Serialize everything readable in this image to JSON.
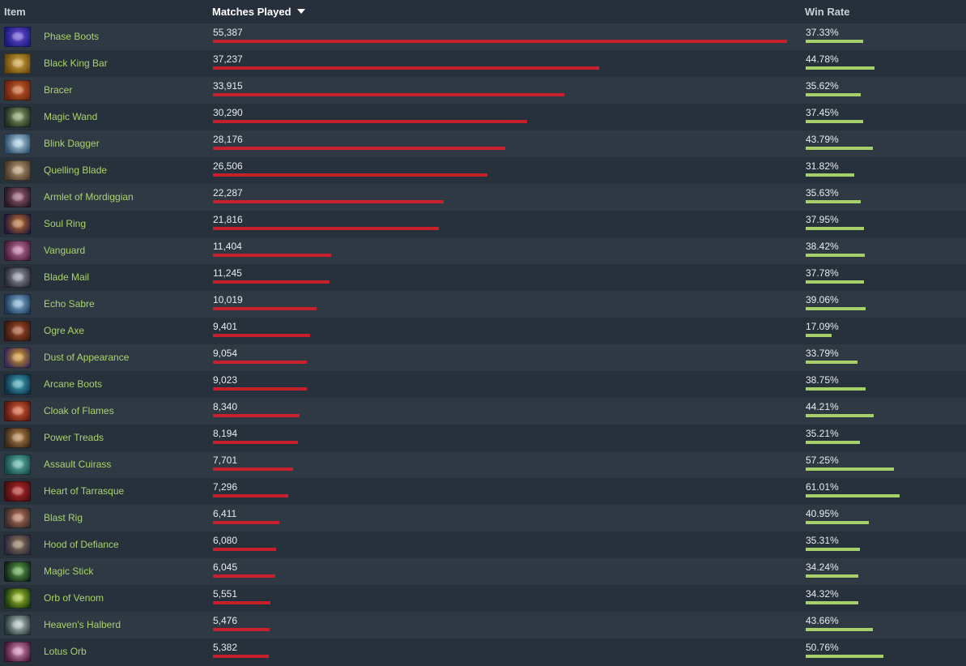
{
  "header": {
    "item": "Item",
    "matches_played": "Matches Played",
    "win_rate": "Win Rate",
    "sort_column": "matches_played",
    "sort_direction": "descending"
  },
  "colors": {
    "matches_bar": "#c8202b",
    "win_rate_bar": "#a6d16a",
    "item_link": "#a9d46d"
  },
  "rows": [
    {
      "name": "Phase Boots",
      "matches": "55,387",
      "matches_value": 55387,
      "win_rate": "37.33%",
      "win_value": 37.33,
      "icon": "phase-boots-icon",
      "icon_colors": [
        "#1c1a7a",
        "#6a4fd8"
      ]
    },
    {
      "name": "Black King Bar",
      "matches": "37,237",
      "matches_value": 37237,
      "win_rate": "44.78%",
      "win_value": 44.78,
      "icon": "black-king-bar-icon",
      "icon_colors": [
        "#6a4a12",
        "#d7a83a"
      ]
    },
    {
      "name": "Bracer",
      "matches": "33,915",
      "matches_value": 33915,
      "win_rate": "35.62%",
      "win_value": 35.62,
      "icon": "bracer-icon",
      "icon_colors": [
        "#6a2410",
        "#d2642a"
      ]
    },
    {
      "name": "Magic Wand",
      "matches": "30,290",
      "matches_value": 30290,
      "win_rate": "37.45%",
      "win_value": 37.45,
      "icon": "magic-wand-icon",
      "icon_colors": [
        "#1f2e22",
        "#8fa86a"
      ]
    },
    {
      "name": "Blink Dagger",
      "matches": "28,176",
      "matches_value": 28176,
      "win_rate": "43.79%",
      "win_value": 43.79,
      "icon": "blink-dagger-icon",
      "icon_colors": [
        "#2e4e6a",
        "#b8dcef"
      ]
    },
    {
      "name": "Quelling Blade",
      "matches": "26,506",
      "matches_value": 26506,
      "win_rate": "31.82%",
      "win_value": 31.82,
      "icon": "quelling-blade-icon",
      "icon_colors": [
        "#4a3a2a",
        "#c0a27a"
      ]
    },
    {
      "name": "Armlet of Mordiggian",
      "matches": "22,287",
      "matches_value": 22287,
      "win_rate": "35.63%",
      "win_value": 35.63,
      "icon": "armlet-of-mordiggian-icon",
      "icon_colors": [
        "#2a1a26",
        "#a0607a"
      ]
    },
    {
      "name": "Soul Ring",
      "matches": "21,816",
      "matches_value": 21816,
      "win_rate": "37.95%",
      "win_value": 37.95,
      "icon": "soul-ring-icon",
      "icon_colors": [
        "#2a1a3a",
        "#c8782a"
      ]
    },
    {
      "name": "Vanguard",
      "matches": "11,404",
      "matches_value": 11404,
      "win_rate": "38.42%",
      "win_value": 38.42,
      "icon": "vanguard-icon",
      "icon_colors": [
        "#4a1e3a",
        "#c878a8"
      ]
    },
    {
      "name": "Blade Mail",
      "matches": "11,245",
      "matches_value": 11245,
      "win_rate": "37.78%",
      "win_value": 37.78,
      "icon": "blade-mail-icon",
      "icon_colors": [
        "#2a2a32",
        "#9aa0b0"
      ]
    },
    {
      "name": "Echo Sabre",
      "matches": "10,019",
      "matches_value": 10019,
      "win_rate": "39.06%",
      "win_value": 39.06,
      "icon": "echo-sabre-icon",
      "icon_colors": [
        "#1e3a5a",
        "#8ab8e0"
      ]
    },
    {
      "name": "Ogre Axe",
      "matches": "9,401",
      "matches_value": 9401,
      "win_rate": "17.09%",
      "win_value": 17.09,
      "icon": "ogre-axe-icon",
      "icon_colors": [
        "#3a1a10",
        "#b0502a"
      ]
    },
    {
      "name": "Dust of Appearance",
      "matches": "9,054",
      "matches_value": 9054,
      "win_rate": "33.79%",
      "win_value": 33.79,
      "icon": "dust-of-appearance-icon",
      "icon_colors": [
        "#3a2a5a",
        "#e0a020"
      ]
    },
    {
      "name": "Arcane Boots",
      "matches": "9,023",
      "matches_value": 9023,
      "win_rate": "38.75%",
      "win_value": 38.75,
      "icon": "arcane-boots-icon",
      "icon_colors": [
        "#10324a",
        "#40b0c0"
      ]
    },
    {
      "name": "Cloak of Flames",
      "matches": "8,340",
      "matches_value": 8340,
      "win_rate": "44.21%",
      "win_value": 44.21,
      "icon": "cloak-of-flames-icon",
      "icon_colors": [
        "#5a1a10",
        "#e0603a"
      ]
    },
    {
      "name": "Power Treads",
      "matches": "8,194",
      "matches_value": 8194,
      "win_rate": "35.21%",
      "win_value": 35.21,
      "icon": "power-treads-icon",
      "icon_colors": [
        "#3a2a1a",
        "#c08a4a"
      ]
    },
    {
      "name": "Assault Cuirass",
      "matches": "7,701",
      "matches_value": 7701,
      "win_rate": "57.25%",
      "win_value": 57.25,
      "icon": "assault-cuirass-icon",
      "icon_colors": [
        "#1a4a4a",
        "#60c0b0"
      ]
    },
    {
      "name": "Heart of Tarrasque",
      "matches": "7,296",
      "matches_value": 7296,
      "win_rate": "61.01%",
      "win_value": 61.01,
      "icon": "heart-of-tarrasque-icon",
      "icon_colors": [
        "#4a0e10",
        "#c02a2a"
      ]
    },
    {
      "name": "Blast Rig",
      "matches": "6,411",
      "matches_value": 6411,
      "win_rate": "40.95%",
      "win_value": 40.95,
      "icon": "blast-rig-icon",
      "icon_colors": [
        "#3a2a2a",
        "#c07a5a"
      ]
    },
    {
      "name": "Hood of Defiance",
      "matches": "6,080",
      "matches_value": 6080,
      "win_rate": "35.31%",
      "win_value": 35.31,
      "icon": "hood-of-defiance-icon",
      "icon_colors": [
        "#2a2a3a",
        "#9a7a5a"
      ]
    },
    {
      "name": "Magic Stick",
      "matches": "6,045",
      "matches_value": 6045,
      "win_rate": "34.24%",
      "win_value": 34.24,
      "icon": "magic-stick-icon",
      "icon_colors": [
        "#12241a",
        "#60b04a"
      ]
    },
    {
      "name": "Orb of Venom",
      "matches": "5,551",
      "matches_value": 5551,
      "win_rate": "34.32%",
      "win_value": 34.32,
      "icon": "orb-of-venom-icon",
      "icon_colors": [
        "#1a3a10",
        "#b0d030"
      ]
    },
    {
      "name": "Heaven's Halberd",
      "matches": "5,476",
      "matches_value": 5476,
      "win_rate": "43.66%",
      "win_value": 43.66,
      "icon": "heavens-halberd-icon",
      "icon_colors": [
        "#2a3a3a",
        "#c0d0d0"
      ]
    },
    {
      "name": "Lotus Orb",
      "matches": "5,382",
      "matches_value": 5382,
      "win_rate": "50.76%",
      "win_value": 50.76,
      "icon": "lotus-orb-icon",
      "icon_colors": [
        "#4a1a3a",
        "#e090c0"
      ]
    }
  ]
}
